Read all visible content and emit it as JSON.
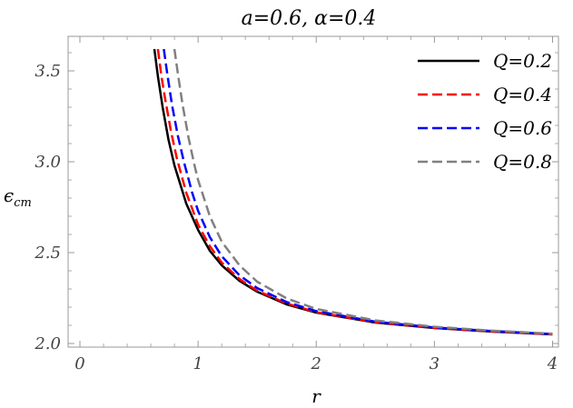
{
  "chart_data": {
    "type": "line",
    "title": "a=0.6, α=0.4",
    "xlabel": "r",
    "ylabel": "ϵcm",
    "ylabel_main": "ϵ",
    "ylabel_sub": "cm",
    "xlim": [
      -0.1,
      4.05
    ],
    "ylim": [
      1.98,
      3.69
    ],
    "xticks": [
      0,
      1,
      2,
      3,
      4
    ],
    "xtick_labels": [
      "0",
      "1",
      "2",
      "3",
      "4"
    ],
    "yticks": [
      2.0,
      2.5,
      3.0,
      3.5
    ],
    "ytick_labels": [
      "2.0",
      "2.5",
      "3.0",
      "3.5"
    ],
    "grid": false,
    "legend_position": "top-right",
    "series": [
      {
        "name": "Q=0.2",
        "color": "#000000",
        "dash": "solid",
        "x": [
          0.63,
          0.66,
          0.7,
          0.75,
          0.8,
          0.9,
          1.0,
          1.1,
          1.2,
          1.35,
          1.5,
          1.75,
          2.0,
          2.5,
          3.0,
          3.5,
          4.0
        ],
        "y": [
          3.62,
          3.47,
          3.3,
          3.12,
          2.98,
          2.77,
          2.625,
          2.51,
          2.43,
          2.345,
          2.285,
          2.215,
          2.17,
          2.115,
          2.085,
          2.065,
          2.05
        ]
      },
      {
        "name": "Q=0.4",
        "color": "#ff0000",
        "dash": "dashed",
        "x": [
          0.66,
          0.69,
          0.72,
          0.77,
          0.82,
          0.9,
          1.0,
          1.1,
          1.2,
          1.35,
          1.5,
          1.75,
          2.0,
          2.5,
          3.0,
          3.5,
          4.0
        ],
        "y": [
          3.62,
          3.47,
          3.35,
          3.17,
          3.02,
          2.83,
          2.655,
          2.535,
          2.445,
          2.355,
          2.29,
          2.22,
          2.172,
          2.117,
          2.086,
          2.066,
          2.051
        ]
      },
      {
        "name": "Q=0.6",
        "color": "#0000ff",
        "dash": "dashed",
        "x": [
          0.71,
          0.74,
          0.78,
          0.83,
          0.88,
          0.95,
          1.0,
          1.1,
          1.2,
          1.35,
          1.5,
          1.75,
          2.0,
          2.5,
          3.0,
          3.5,
          4.0
        ],
        "y": [
          3.62,
          3.48,
          3.31,
          3.14,
          3.0,
          2.83,
          2.73,
          2.585,
          2.48,
          2.375,
          2.305,
          2.228,
          2.178,
          2.12,
          2.088,
          2.068,
          2.052
        ]
      },
      {
        "name": "Q=0.8",
        "color": "#808080",
        "dash": "dashed",
        "x": [
          0.8,
          0.83,
          0.87,
          0.92,
          0.97,
          1.0,
          1.1,
          1.2,
          1.35,
          1.5,
          1.75,
          2.0,
          2.5,
          3.0,
          3.5,
          4.0
        ],
        "y": [
          3.62,
          3.48,
          3.31,
          3.13,
          2.98,
          2.9,
          2.7,
          2.56,
          2.43,
          2.34,
          2.248,
          2.19,
          2.127,
          2.092,
          2.07,
          2.054
        ]
      }
    ]
  }
}
